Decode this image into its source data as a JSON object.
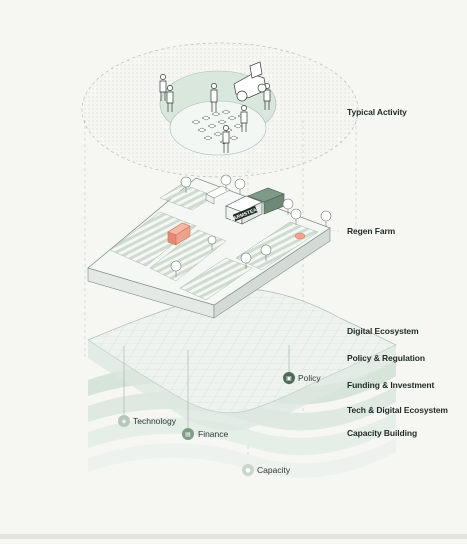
{
  "layers": [
    {
      "id": "typical-activity",
      "label": "Typical Activity"
    },
    {
      "id": "regen-farm",
      "label": "Regen Farm"
    },
    {
      "id": "digital-ecosystem",
      "label": "Digital Ecosystem"
    },
    {
      "id": "policy-regulation",
      "label": "Policy & Regulation"
    },
    {
      "id": "funding-investment",
      "label": "Funding & Investment"
    },
    {
      "id": "tech-digital-ecosystem",
      "label": "Tech & Digital Ecosystem"
    },
    {
      "id": "capacity-building",
      "label": "Capacity Building"
    }
  ],
  "pins": [
    {
      "id": "policy",
      "label": "Policy",
      "icon": "policy-icon"
    },
    {
      "id": "technology",
      "label": "Technology",
      "icon": "technology-icon"
    },
    {
      "id": "finance",
      "label": "Finance",
      "icon": "finance-icon"
    },
    {
      "id": "capacity",
      "label": "Capacity",
      "icon": "capacity-icon"
    }
  ],
  "farm_sign": "FARMSTEAD",
  "colors": {
    "accent_green": "#6f8f77",
    "dark_green": "#4d6b55",
    "light_green": "#dde8df",
    "wash_green": "#e8f0ea",
    "barn_red": "#e58a72",
    "label_text": "#1f2b24"
  }
}
